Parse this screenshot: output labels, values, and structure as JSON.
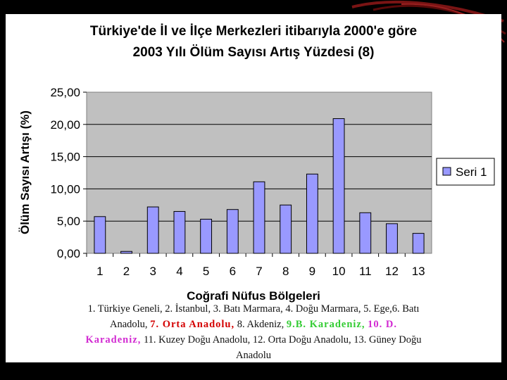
{
  "colors": {
    "background": "#000000",
    "panel": "#ffffff",
    "plot_area": "#c0c0c0",
    "bar_fill": "#9999ff",
    "bar_stroke": "#000000",
    "highlight_red": "#d40000",
    "highlight_green": "#33cc33",
    "highlight_magenta": "#d22bd2"
  },
  "chart_data": {
    "type": "bar",
    "title_lines": [
      "Türkiye'de İl ve İlçe Merkezleri itibarıyla 2000'e göre",
      "2003 Yılı Ölüm Sayısı Artış Yüzdesi (8)"
    ],
    "xlabel": "Coğrafi Nüfus Bölgeleri",
    "ylabel": "Ölüm Sayısı Artışı (%)",
    "categories": [
      "1",
      "2",
      "3",
      "4",
      "5",
      "6",
      "7",
      "8",
      "9",
      "10",
      "11",
      "12",
      "13"
    ],
    "series": [
      {
        "name": "Seri 1",
        "values": [
          5.7,
          0.3,
          7.2,
          6.5,
          5.3,
          6.8,
          11.1,
          7.5,
          12.3,
          20.9,
          6.3,
          4.6,
          3.1
        ]
      }
    ],
    "ylim": [
      0,
      25
    ],
    "yticks": [
      "0,00",
      "5,00",
      "10,00",
      "15,00",
      "20,00",
      "25,00"
    ],
    "grid": true,
    "legend_position": "right"
  },
  "caption": {
    "part1": "1. Türkiye Geneli, 2. İstanbul, 3. Batı Marmara, 4. Doğu Marmara, 5. Ege,6. Batı Anadolu, ",
    "red": "7. Orta Anadolu,",
    "part2": " 8. Akdeniz, ",
    "green": "9.B. Karadeniz,",
    "magenta": "10. D. Karadeniz,",
    "part3": " 11. Kuzey Doğu Anadolu, 12. Orta Doğu Anadolu, 13. Güney Doğu Anadolu"
  }
}
